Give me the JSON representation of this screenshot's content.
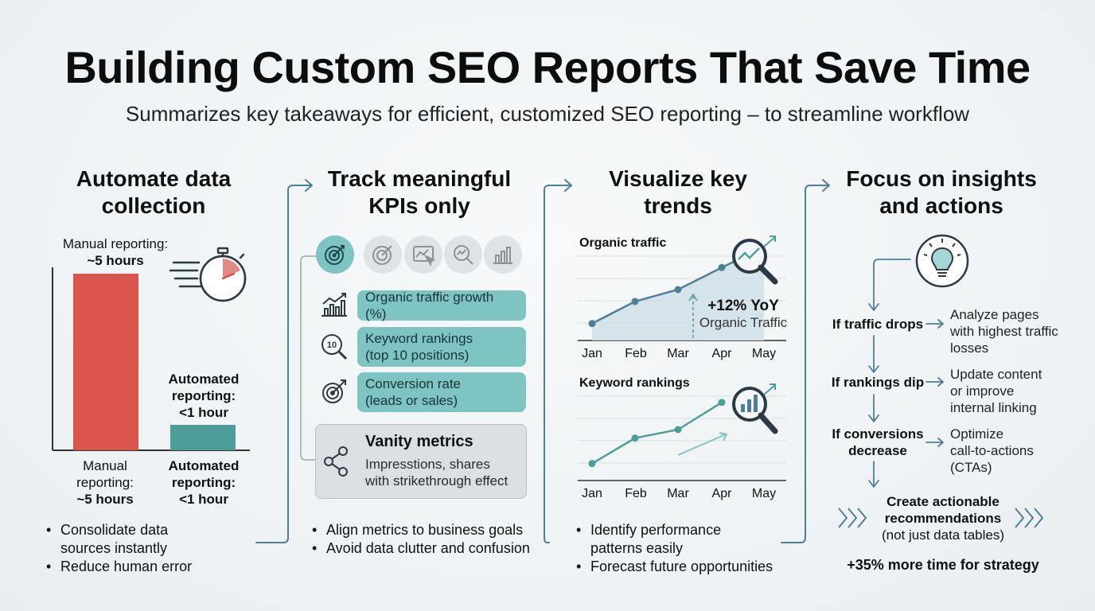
{
  "header": {
    "title": "Building Custom SEO Reports That Save Time",
    "subtitle": "Summarizes key takeaways for efficient, customized SEO reporting – to streamline workflow"
  },
  "col1": {
    "title_line1": "Automate data",
    "title_line2": "collection",
    "manual_top_line1": "Manual reporting:",
    "manual_top_line2": "~5 hours",
    "automated_top_line1": "Automated",
    "automated_top_line2": "reporting:",
    "automated_top_line3": "<1 hour",
    "manual_axis_line1": "Manual",
    "manual_axis_line2": "reporting:",
    "manual_axis_line3": "~5 hours",
    "automated_axis_line1": "Automated",
    "automated_axis_line2": "reporting:",
    "automated_axis_line3": "<1 hour",
    "bullet1_line1": "Consolidate data",
    "bullet1_line2": "sources instantly",
    "bullet2": "Reduce human error"
  },
  "col2": {
    "title_line1": "Track meaningful",
    "title_line2": "KPIs only",
    "kpi1": "Organic traffic growth (%)",
    "kpi2_line1": "Keyword rankings",
    "kpi2_line2": "(top 10 positions)",
    "kpi3_line1": "Conversion rate",
    "kpi3_line2": "(leads or sales)",
    "vanity_title": "Vanity metrics",
    "vanity_line1": "Impresstions, shares",
    "vanity_line2": "with strikethrough effect",
    "bullet1": "Align metrics to business goals",
    "bullet2": "Avoid data clutter and confusion"
  },
  "col3": {
    "title_line1": "Visualize key",
    "title_line2": "trends",
    "chart1_label": "Organic traffic",
    "yoy": "+12% YoY",
    "yoy_sub": "Organic Traffic",
    "chart2_label": "Keyword rankings",
    "months": [
      "Jan",
      "Feb",
      "Mar",
      "Apr",
      "May"
    ],
    "bullet1_line1": "Identify performance",
    "bullet1_line2": "patterns easily",
    "bullet2": "Forecast future opportunities"
  },
  "col4": {
    "title_line1": "Focus on insights",
    "title_line2": "and actions",
    "cond1": "If traffic drops",
    "act1_line1": "Analyze pages",
    "act1_line2": "with highest traffic",
    "act1_line3": "losses",
    "cond2": "If rankings dip",
    "act2_line1": "Update content",
    "act2_line2": "or improve",
    "act2_line3": "internal linking",
    "cond3_line1": "If conversions",
    "cond3_line2": "decrease",
    "act3_line1": "Optimize",
    "act3_line2": "call-to-actions",
    "act3_line3": "(CTAs)",
    "rec_line1": "Create actionable",
    "rec_line2": "recommendations",
    "rec_line3": "(not just data tables)",
    "footer": "+35% more time for strategy"
  },
  "chart_data": [
    {
      "type": "bar",
      "categories": [
        "Manual reporting",
        "Automated reporting"
      ],
      "values": [
        5,
        1
      ],
      "unit": "hours",
      "colors": [
        "#d9544b",
        "#4d9d9b"
      ]
    },
    {
      "type": "area",
      "title": "Organic traffic",
      "categories": [
        "Jan",
        "Feb",
        "Mar",
        "Apr",
        "May"
      ],
      "values": [
        1,
        2.3,
        3.0,
        4.3,
        5.5
      ],
      "annotation": "+12% YoY Organic Traffic",
      "color": "#4f7f96"
    },
    {
      "type": "line",
      "title": "Keyword rankings",
      "categories": [
        "Jan",
        "Feb",
        "Mar",
        "Apr"
      ],
      "values": [
        1,
        2.5,
        3.0,
        4.6
      ],
      "color": "#4d9d9b"
    }
  ],
  "colors": {
    "accent": "#7ec4c2",
    "manual": "#d9544b",
    "automated": "#4d9d9b",
    "line": "#4f7f96"
  }
}
